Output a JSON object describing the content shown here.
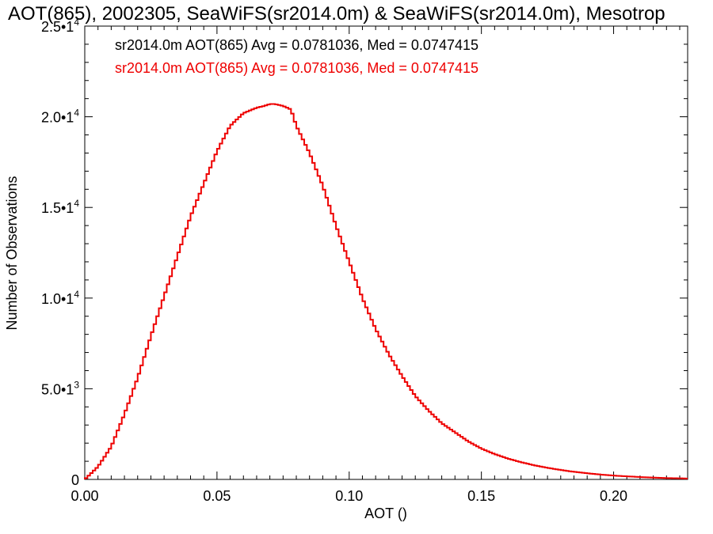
{
  "chart_data": {
    "type": "line",
    "title": "AOT(865), 2002305, SeaWiFS(sr2014.0m) & SeaWiFS(sr2014.0m), Mesotrop",
    "xlabel": "AOT ()",
    "ylabel": "Number of Observations",
    "xlim": [
      0.0,
      0.228
    ],
    "ylim": [
      0,
      25000
    ],
    "grid": false,
    "legend_position": "top-left",
    "x_ticks": [
      {
        "value": 0.0,
        "label": "0.00"
      },
      {
        "value": 0.05,
        "label": "0.05"
      },
      {
        "value": 0.1,
        "label": "0.10"
      },
      {
        "value": 0.15,
        "label": "0.15"
      },
      {
        "value": 0.2,
        "label": "0.20"
      }
    ],
    "y_ticks": [
      {
        "value": 0,
        "mant": "0",
        "exp": ""
      },
      {
        "value": 5000,
        "mant": "5.0•1",
        "exp": "3"
      },
      {
        "value": 10000,
        "mant": "1.0•1",
        "exp": "4"
      },
      {
        "value": 15000,
        "mant": "1.5•1",
        "exp": "4"
      },
      {
        "value": 20000,
        "mant": "2.0•1",
        "exp": "4"
      },
      {
        "value": 25000,
        "mant": "2.5•1",
        "exp": "4"
      }
    ],
    "annotations": [
      {
        "text": "sr2014.0m AOT(865) Avg = 0.0781036, Med = 0.0747415",
        "color": "#000000"
      },
      {
        "text": "sr2014.0m AOT(865) Avg = 0.0781036, Med = 0.0747415",
        "color": "#ee0000"
      }
    ],
    "series": [
      {
        "color": "#ee0000",
        "x": [
          0.0,
          0.005,
          0.01,
          0.015,
          0.02,
          0.025,
          0.03,
          0.035,
          0.04,
          0.045,
          0.05,
          0.055,
          0.06,
          0.065,
          0.068,
          0.07,
          0.072,
          0.075,
          0.078,
          0.08,
          0.085,
          0.09,
          0.095,
          0.1,
          0.105,
          0.11,
          0.115,
          0.12,
          0.125,
          0.13,
          0.135,
          0.14,
          0.145,
          0.15,
          0.155,
          0.16,
          0.165,
          0.17,
          0.175,
          0.18,
          0.185,
          0.19,
          0.195,
          0.2,
          0.205,
          0.21,
          0.215,
          0.22,
          0.228
        ],
        "y": [
          0,
          700,
          1800,
          3600,
          5600,
          7900,
          10100,
          12300,
          14500,
          16300,
          18100,
          19500,
          20200,
          20500,
          20600,
          20700,
          20700,
          20600,
          20400,
          19500,
          18000,
          16200,
          14000,
          12000,
          10000,
          8300,
          6900,
          5700,
          4600,
          3800,
          3100,
          2600,
          2100,
          1700,
          1400,
          1150,
          950,
          780,
          640,
          520,
          420,
          340,
          270,
          210,
          170,
          130,
          100,
          75,
          50
        ]
      }
    ]
  }
}
